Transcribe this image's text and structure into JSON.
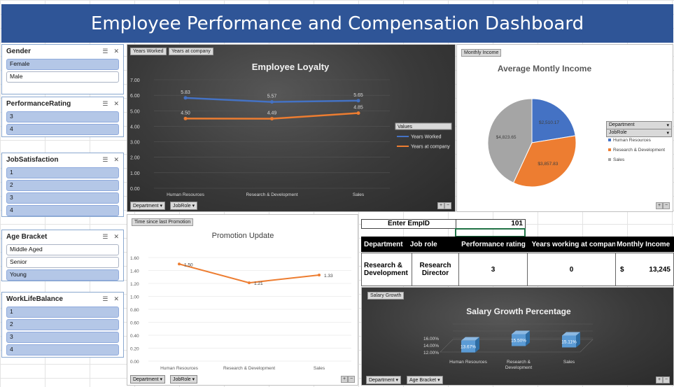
{
  "title": "Employee Performance and Compensation Dashboard",
  "slicers": {
    "gender": {
      "title": "Gender",
      "items": [
        "Female",
        "Male"
      ]
    },
    "performance": {
      "title": "PerformanceRating",
      "items": [
        "3",
        "4"
      ]
    },
    "job_satisfaction": {
      "title": "JobSatisfaction",
      "items": [
        "1",
        "2",
        "3",
        "4"
      ]
    },
    "age_bracket": {
      "title": "Age Bracket",
      "items": [
        "Middle Aged",
        "Senior",
        "Young"
      ]
    },
    "work_life": {
      "title": "WorkLifeBalance",
      "items": [
        "1",
        "2",
        "3",
        "4"
      ]
    }
  },
  "loyalty": {
    "tags": [
      "Years Worked",
      "Years at company"
    ],
    "legend_title": "Values",
    "filters": [
      "Department",
      "JobRole"
    ]
  },
  "income": {
    "tag": "Monthly Income",
    "filters": [
      "Department",
      "JobRole"
    ],
    "legend": [
      "Human Resources",
      "Research & Development",
      "Sales"
    ],
    "slice_labels": [
      "$2,510.17",
      "$3,857.83",
      "$4,823.65"
    ]
  },
  "promotion": {
    "tag": "Time since last Promotion",
    "filters": [
      "Department",
      "JobRole"
    ]
  },
  "lookup": {
    "label": "Enter EmpID",
    "value": "101",
    "headers": [
      "Department",
      "Job role",
      "Performance rating",
      "Years working at company",
      "Monthly Income"
    ],
    "row": {
      "department": "Research & Development",
      "job_role": "Research Director",
      "performance": "3",
      "years": "0",
      "currency": "$",
      "income": "13,245"
    }
  },
  "salary": {
    "tag": "Salary Growth",
    "filters": [
      "Department",
      "Age Bracket"
    ]
  },
  "chart_data": [
    {
      "type": "line",
      "title": "Employee Loyalty",
      "categories": [
        "Human Resources",
        "Research & Development",
        "Sales"
      ],
      "series": [
        {
          "name": "Years Worked",
          "values": [
            5.83,
            5.57,
            5.65
          ],
          "color": "#4472c4"
        },
        {
          "name": "Years at company",
          "values": [
            4.5,
            4.49,
            4.85
          ],
          "color": "#ed7d31"
        }
      ],
      "yticks": [
        "0.00",
        "1.00",
        "2.00",
        "3.00",
        "4.00",
        "5.00",
        "6.00",
        "7.00"
      ],
      "ylim": [
        0,
        7
      ]
    },
    {
      "type": "pie",
      "title": "Average Montly Income",
      "categories": [
        "Human Resources",
        "Research & Development",
        "Sales"
      ],
      "values": [
        2510.17,
        3857.83,
        4823.65
      ],
      "colors": [
        "#4472c4",
        "#ed7d31",
        "#a5a5a5"
      ]
    },
    {
      "type": "line",
      "title": "Promotion Update",
      "categories": [
        "Human Resources",
        "Research & Development",
        "Sales"
      ],
      "values": [
        1.5,
        1.21,
        1.33
      ],
      "labels": [
        "1.50",
        "1.21",
        "1.33"
      ],
      "color": "#ed7d31",
      "yticks": [
        "0.00",
        "0.20",
        "0.40",
        "0.60",
        "0.80",
        "1.00",
        "1.20",
        "1.40",
        "1.60"
      ],
      "ylim": [
        0,
        1.6
      ]
    },
    {
      "type": "bar",
      "title": "Salary Growth Percentage",
      "categories": [
        "Human Resources",
        "Research & Development",
        "Sales"
      ],
      "values": [
        13.67,
        15.5,
        15.11
      ],
      "labels": [
        "13.67%",
        "15.50%",
        "15.11%"
      ],
      "yticks": [
        "12.00%",
        "14.00%",
        "16.00%"
      ],
      "ylim": [
        12,
        16
      ],
      "color": "#5b9bd5"
    }
  ]
}
